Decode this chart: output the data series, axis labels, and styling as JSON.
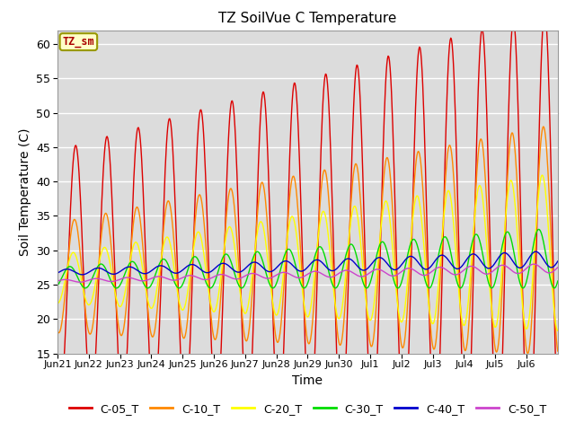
{
  "title": "TZ SoilVue C Temperature",
  "xlabel": "Time",
  "ylabel": "Soil Temperature (C)",
  "ylim": [
    15,
    62
  ],
  "yticks": [
    15,
    20,
    25,
    30,
    35,
    40,
    45,
    50,
    55,
    60
  ],
  "bg_color": "#dcdcdc",
  "fig_bg_color": "#ffffff",
  "legend_label": "TZ_sm",
  "series": [
    {
      "name": "C-05_T",
      "color": "#dd0000"
    },
    {
      "name": "C-10_T",
      "color": "#ff8800"
    },
    {
      "name": "C-20_T",
      "color": "#ffff00"
    },
    {
      "name": "C-30_T",
      "color": "#00dd00"
    },
    {
      "name": "C-40_T",
      "color": "#0000cc"
    },
    {
      "name": "C-50_T",
      "color": "#cc44cc"
    }
  ],
  "xtick_labels": [
    "Jun 21",
    "Jun 22",
    "Jun 23",
    "Jun 24",
    "Jun 25",
    "Jun 26",
    "Jun 27",
    "Jun 28",
    "Jun 29",
    "Jun 30",
    "Jul 1",
    "Jul 2",
    "Jul 3",
    "Jul 4",
    "Jul 5",
    "Jul 6"
  ],
  "n_days": 16
}
